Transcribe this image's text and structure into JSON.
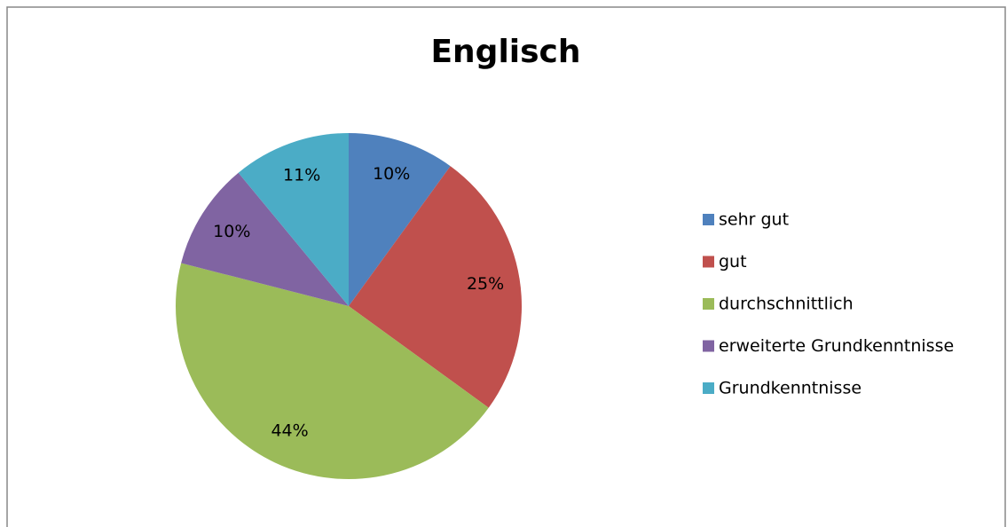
{
  "chart_data": {
    "type": "pie",
    "title": "Englisch",
    "categories": [
      "sehr gut",
      "gut",
      "durchschnittlich",
      "erweiterte Grundkenntnisse",
      "Grundkenntnisse"
    ],
    "values": [
      10,
      25,
      44,
      10,
      11
    ],
    "value_labels": [
      "10%",
      "25%",
      "44%",
      "10%",
      "11%"
    ],
    "colors": [
      "#4f81bd",
      "#c0504d",
      "#9bbb59",
      "#8064a2",
      "#4bacc6"
    ],
    "legend": "right"
  }
}
